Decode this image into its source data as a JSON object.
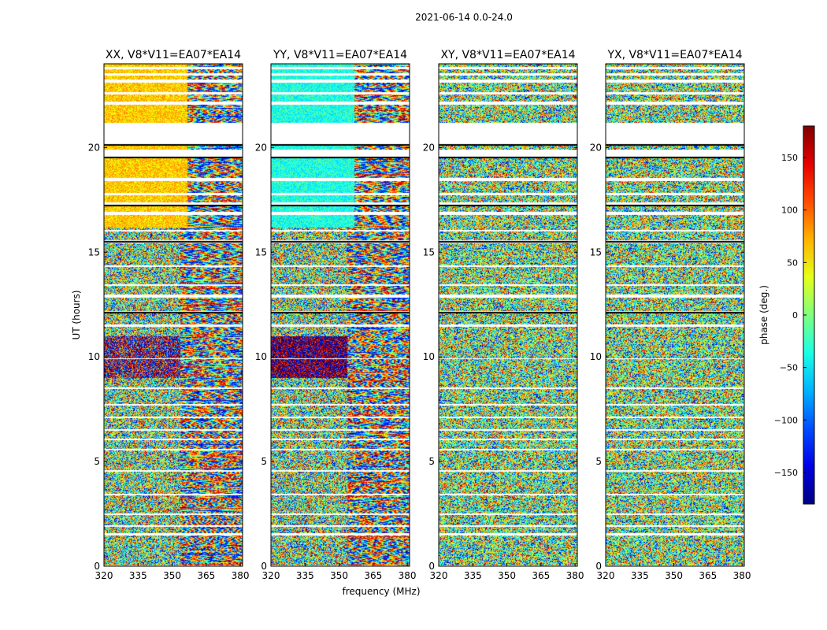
{
  "figure": {
    "suptitle": "2021-06-14 0.0-24.0",
    "ylabel": "UT (hours)",
    "xlabel": "frequency (MHz)"
  },
  "chart_data": {
    "type": "heatmap",
    "x_range": [
      320,
      381
    ],
    "y_range": [
      0,
      24
    ],
    "x_ticks": [
      "320",
      "335",
      "350",
      "365",
      "380"
    ],
    "x_tick_values": [
      320,
      335,
      350,
      365,
      380
    ],
    "y_ticks": [
      "0",
      "5",
      "10",
      "15",
      "20"
    ],
    "y_tick_values": [
      0,
      5,
      10,
      15,
      20
    ],
    "panels": [
      {
        "title": "XX, V8*V11=EA07*EA14",
        "pol": "XX"
      },
      {
        "title": "YY, V8*V11=EA07*EA14",
        "pol": "YY"
      },
      {
        "title": "XY, V8*V11=EA07*EA14",
        "pol": "XY"
      },
      {
        "title": "YX, V8*V11=EA07*EA14",
        "pol": "YX"
      }
    ],
    "flagged_gaps_hours": [
      [
        0.0,
        0.05
      ],
      [
        1.5,
        1.6
      ],
      [
        1.9,
        1.98
      ],
      [
        2.45,
        2.55
      ],
      [
        3.4,
        3.47
      ],
      [
        4.55,
        4.6
      ],
      [
        5.55,
        5.62
      ],
      [
        6.05,
        6.1
      ],
      [
        6.5,
        6.58
      ],
      [
        7.1,
        7.18
      ],
      [
        7.7,
        7.78
      ],
      [
        8.5,
        8.57
      ],
      [
        9.9,
        9.95
      ],
      [
        11.45,
        11.55
      ],
      [
        12.1,
        12.2
      ],
      [
        12.85,
        13.0
      ],
      [
        13.4,
        13.5
      ],
      [
        14.3,
        14.4
      ],
      [
        15.45,
        15.6
      ],
      [
        16.0,
        16.1
      ],
      [
        16.8,
        16.95
      ],
      [
        17.25,
        17.4
      ],
      [
        17.75,
        17.85
      ],
      [
        18.4,
        18.55
      ],
      [
        19.55,
        19.9
      ],
      [
        20.1,
        21.2
      ],
      [
        22.05,
        22.2
      ],
      [
        22.55,
        22.65
      ],
      [
        23.1,
        23.25
      ],
      [
        23.45,
        23.55
      ],
      [
        23.75,
        23.85
      ]
    ],
    "colorbar": {
      "label": "phase (deg.)",
      "range": [
        -180,
        180
      ],
      "ticks": [
        "150",
        "100",
        "50",
        "0",
        "−50",
        "−100",
        "−150"
      ],
      "tick_values": [
        150,
        100,
        50,
        0,
        -50,
        -100,
        -150
      ],
      "colormap": "jet"
    }
  }
}
